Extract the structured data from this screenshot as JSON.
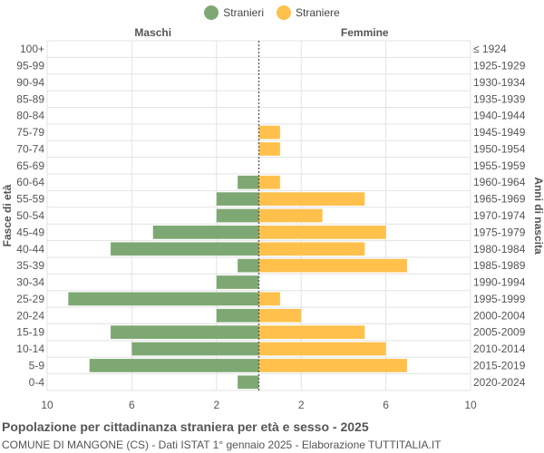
{
  "legend": {
    "male_label": "Stranieri",
    "female_label": "Straniere"
  },
  "colors": {
    "male": "#7ea873",
    "female": "#ffc04c",
    "grid": "#e3e3e3",
    "axis_line": "#555555"
  },
  "footer": {
    "title": "Popolazione per cittadinanza straniera per età e sesso - 2025",
    "subtitle": "COMUNE DI MANGONE (CS) - Dati ISTAT 1° gennaio 2025 - Elaborazione TUTTITALIA.IT"
  },
  "chart_data": {
    "type": "bar",
    "orientation": "horizontal",
    "title": "Popolazione per cittadinanza straniera per età e sesso - 2025",
    "left_header": "Maschi",
    "right_header": "Femmine",
    "ylabel_left": "Fasce di età",
    "ylabel_right": "Anni di nascita",
    "xlim": [
      -10,
      10
    ],
    "x_ticks": [
      -10,
      -6,
      -2,
      2,
      6,
      10
    ],
    "x_tick_labels": [
      "10",
      "6",
      "2",
      "2",
      "6",
      "10"
    ],
    "categories": [
      "100+",
      "95-99",
      "90-94",
      "85-89",
      "80-84",
      "75-79",
      "70-74",
      "65-69",
      "60-64",
      "55-59",
      "50-54",
      "45-49",
      "40-44",
      "35-39",
      "30-34",
      "25-29",
      "20-24",
      "15-19",
      "10-14",
      "5-9",
      "0-4"
    ],
    "birth_years": [
      "≤ 1924",
      "1925-1929",
      "1930-1934",
      "1935-1939",
      "1940-1944",
      "1945-1949",
      "1950-1954",
      "1955-1959",
      "1960-1964",
      "1965-1969",
      "1970-1974",
      "1975-1979",
      "1980-1984",
      "1985-1989",
      "1990-1994",
      "1995-1999",
      "2000-2004",
      "2005-2009",
      "2010-2014",
      "2015-2019",
      "2020-2024"
    ],
    "series": [
      {
        "name": "Stranieri",
        "values": [
          0,
          0,
          0,
          0,
          0,
          0,
          0,
          0,
          1,
          2,
          2,
          5,
          7,
          1,
          2,
          9,
          2,
          7,
          6,
          8,
          1
        ]
      },
      {
        "name": "Straniere",
        "values": [
          0,
          0,
          0,
          0,
          0,
          1,
          1,
          0,
          1,
          5,
          3,
          6,
          5,
          7,
          0,
          1,
          2,
          5,
          6,
          7,
          0
        ]
      }
    ],
    "grid": true,
    "legend_position": "top-center"
  }
}
